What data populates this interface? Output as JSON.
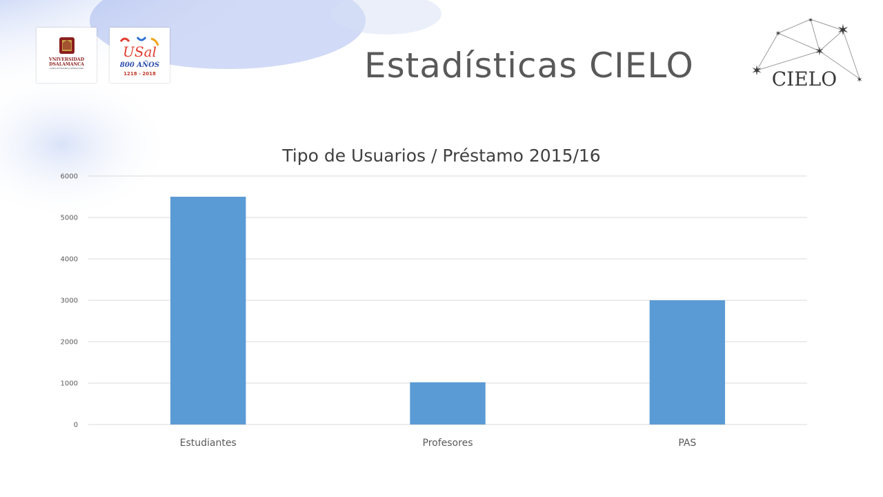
{
  "slide": {
    "title": "Estadísticas CIELO",
    "logos": {
      "university": {
        "line1": "VNIVERSIDAD",
        "line2": "DSALAMANCA",
        "line3": "CAMPUS DE EXCELENCIA INTERNACIONAL"
      },
      "anniversary": {
        "mark": "USal",
        "years": "800 AÑOS",
        "range": "1218 - 2018"
      },
      "cielo": {
        "text": "CIELO"
      }
    }
  },
  "colors": {
    "bar": "#5b9bd5",
    "title": "#595959",
    "grid": "#d9d9d9",
    "axis_text": "#595959"
  },
  "chart_data": {
    "type": "bar",
    "title": "Tipo de Usuarios / Préstamo 2015/16",
    "categories": [
      "Estudiantes",
      "Profesores",
      "PAS"
    ],
    "values": [
      5500,
      1020,
      3000
    ],
    "xlabel": "",
    "ylabel": "",
    "ylim": [
      0,
      6000
    ],
    "yticks": [
      0,
      1000,
      2000,
      3000,
      4000,
      5000,
      6000
    ],
    "grid": true,
    "legend": "none"
  }
}
